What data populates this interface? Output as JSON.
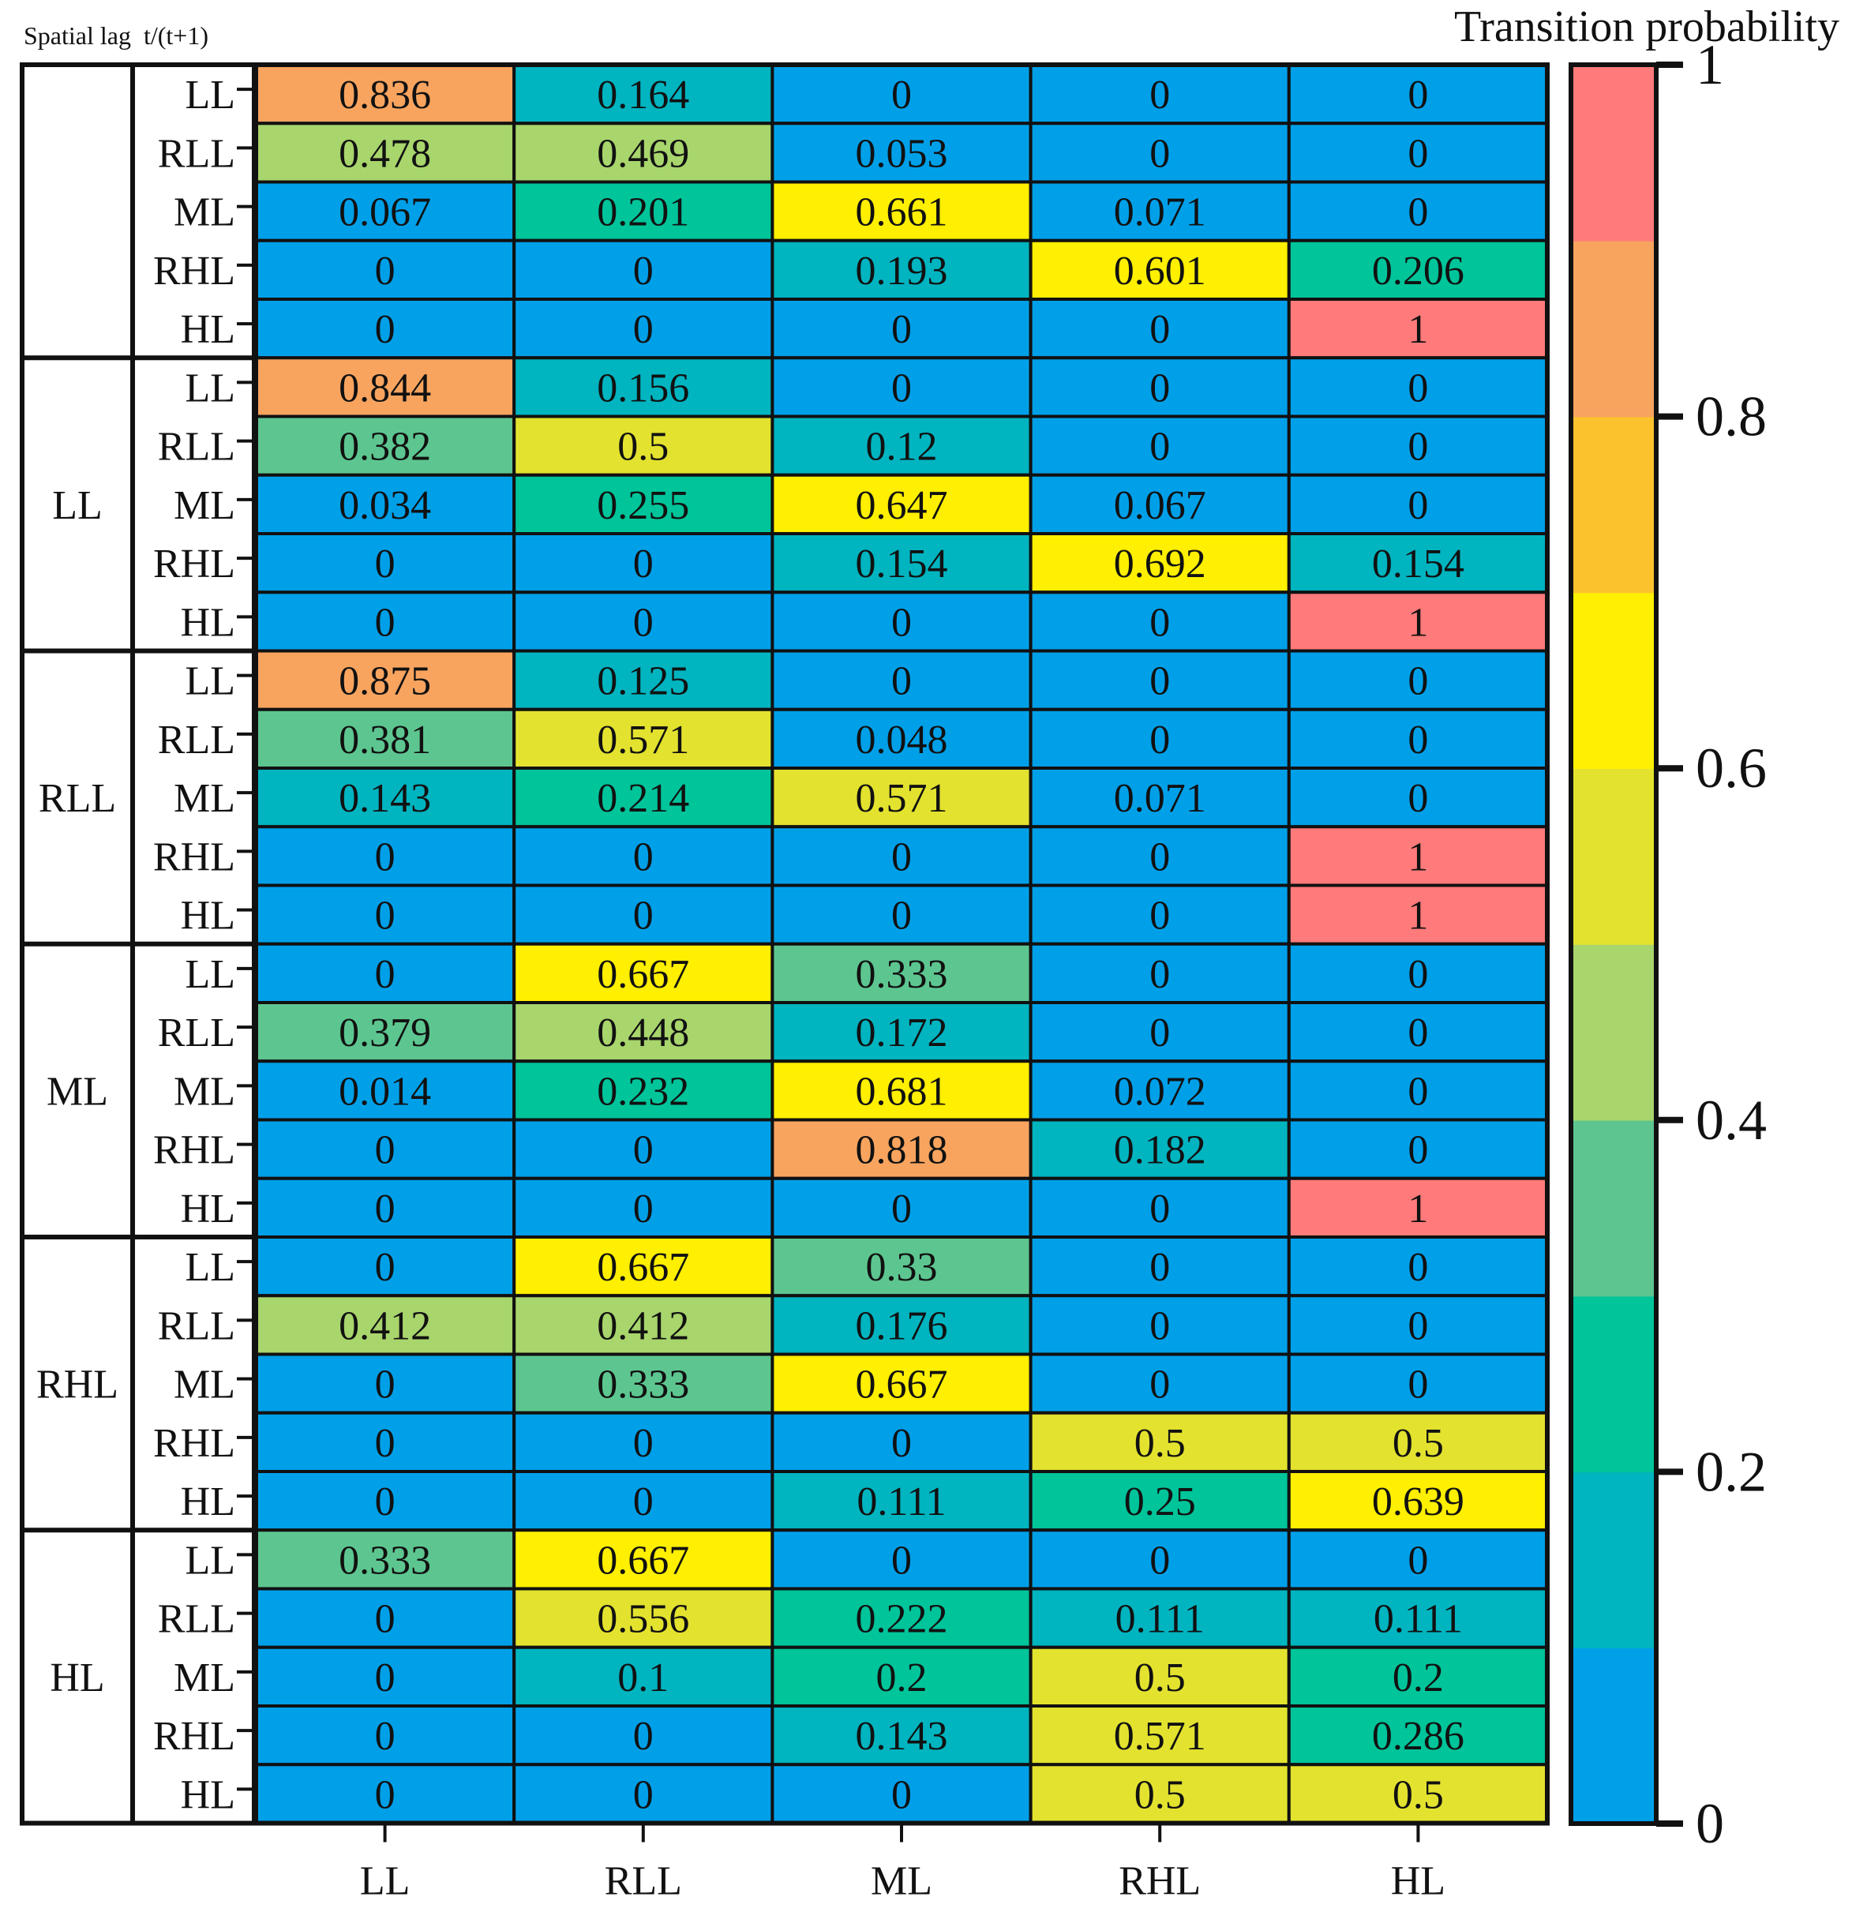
{
  "chart_data": {
    "type": "heatmap",
    "corner_label": "Spatial lag  t/(t+1)",
    "colorbar_title": "Transition probability",
    "colorbar_ticks": [
      "0",
      "0.2",
      "0.4",
      "0.6",
      "0.8",
      "1"
    ],
    "colorbar_range": [
      0,
      1
    ],
    "columns": [
      "LL",
      "RLL",
      "ML",
      "RHL",
      "HL"
    ],
    "groups": [
      {
        "label": "",
        "rows": [
          {
            "label": "LL",
            "values": [
              "0.836",
              "0.164",
              "0",
              "0",
              "0"
            ]
          },
          {
            "label": "RLL",
            "values": [
              "0.478",
              "0.469",
              "0.053",
              "0",
              "0"
            ]
          },
          {
            "label": "ML",
            "values": [
              "0.067",
              "0.201",
              "0.661",
              "0.071",
              "0"
            ]
          },
          {
            "label": "RHL",
            "values": [
              "0",
              "0",
              "0.193",
              "0.601",
              "0.206"
            ]
          },
          {
            "label": "HL",
            "values": [
              "0",
              "0",
              "0",
              "0",
              "1"
            ]
          }
        ]
      },
      {
        "label": "LL",
        "rows": [
          {
            "label": "LL",
            "values": [
              "0.844",
              "0.156",
              "0",
              "0",
              "0"
            ]
          },
          {
            "label": "RLL",
            "values": [
              "0.382",
              "0.5",
              "0.12",
              "0",
              "0"
            ]
          },
          {
            "label": "ML",
            "values": [
              "0.034",
              "0.255",
              "0.647",
              "0.067",
              "0"
            ]
          },
          {
            "label": "RHL",
            "values": [
              "0",
              "0",
              "0.154",
              "0.692",
              "0.154"
            ]
          },
          {
            "label": "HL",
            "values": [
              "0",
              "0",
              "0",
              "0",
              "1"
            ]
          }
        ]
      },
      {
        "label": "RLL",
        "rows": [
          {
            "label": "LL",
            "values": [
              "0.875",
              "0.125",
              "0",
              "0",
              "0"
            ]
          },
          {
            "label": "RLL",
            "values": [
              "0.381",
              "0.571",
              "0.048",
              "0",
              "0"
            ]
          },
          {
            "label": "ML",
            "values": [
              "0.143",
              "0.214",
              "0.571",
              "0.071",
              "0"
            ]
          },
          {
            "label": "RHL",
            "values": [
              "0",
              "0",
              "0",
              "0",
              "1"
            ]
          },
          {
            "label": "HL",
            "values": [
              "0",
              "0",
              "0",
              "0",
              "1"
            ]
          }
        ]
      },
      {
        "label": "ML",
        "rows": [
          {
            "label": "LL",
            "values": [
              "0",
              "0.667",
              "0.333",
              "0",
              "0"
            ]
          },
          {
            "label": "RLL",
            "values": [
              "0.379",
              "0.448",
              "0.172",
              "0",
              "0"
            ]
          },
          {
            "label": "ML",
            "values": [
              "0.014",
              "0.232",
              "0.681",
              "0.072",
              "0"
            ]
          },
          {
            "label": "RHL",
            "values": [
              "0",
              "0",
              "0.818",
              "0.182",
              "0"
            ]
          },
          {
            "label": "HL",
            "values": [
              "0",
              "0",
              "0",
              "0",
              "1"
            ]
          }
        ]
      },
      {
        "label": "RHL",
        "rows": [
          {
            "label": "LL",
            "values": [
              "0",
              "0.667",
              "0.33",
              "0",
              "0"
            ]
          },
          {
            "label": "RLL",
            "values": [
              "0.412",
              "0.412",
              "0.176",
              "0",
              "0"
            ]
          },
          {
            "label": "ML",
            "values": [
              "0",
              "0.333",
              "0.667",
              "0",
              "0"
            ]
          },
          {
            "label": "RHL",
            "values": [
              "0",
              "0",
              "0",
              "0.5",
              "0.5"
            ]
          },
          {
            "label": "HL",
            "values": [
              "0",
              "0",
              "0.111",
              "0.25",
              "0.639"
            ]
          }
        ]
      },
      {
        "label": "HL",
        "rows": [
          {
            "label": "LL",
            "values": [
              "0.333",
              "0.667",
              "0",
              "0",
              "0"
            ]
          },
          {
            "label": "RLL",
            "values": [
              "0",
              "0.556",
              "0.222",
              "0.111",
              "0.111"
            ]
          },
          {
            "label": "ML",
            "values": [
              "0",
              "0.1",
              "0.2",
              "0.5",
              "0.2"
            ]
          },
          {
            "label": "RHL",
            "values": [
              "0",
              "0",
              "0.143",
              "0.571",
              "0.286"
            ]
          },
          {
            "label": "HL",
            "values": [
              "0",
              "0",
              "0",
              "0.5",
              "0.5"
            ]
          }
        ]
      }
    ],
    "colormap": [
      "#00A0E9",
      "#00B4C0",
      "#00C49A",
      "#5DC690",
      "#A8D56C",
      "#E3E22F",
      "#FFEF00",
      "#FCC22E",
      "#F8A45F",
      "#FF7A7A"
    ]
  }
}
